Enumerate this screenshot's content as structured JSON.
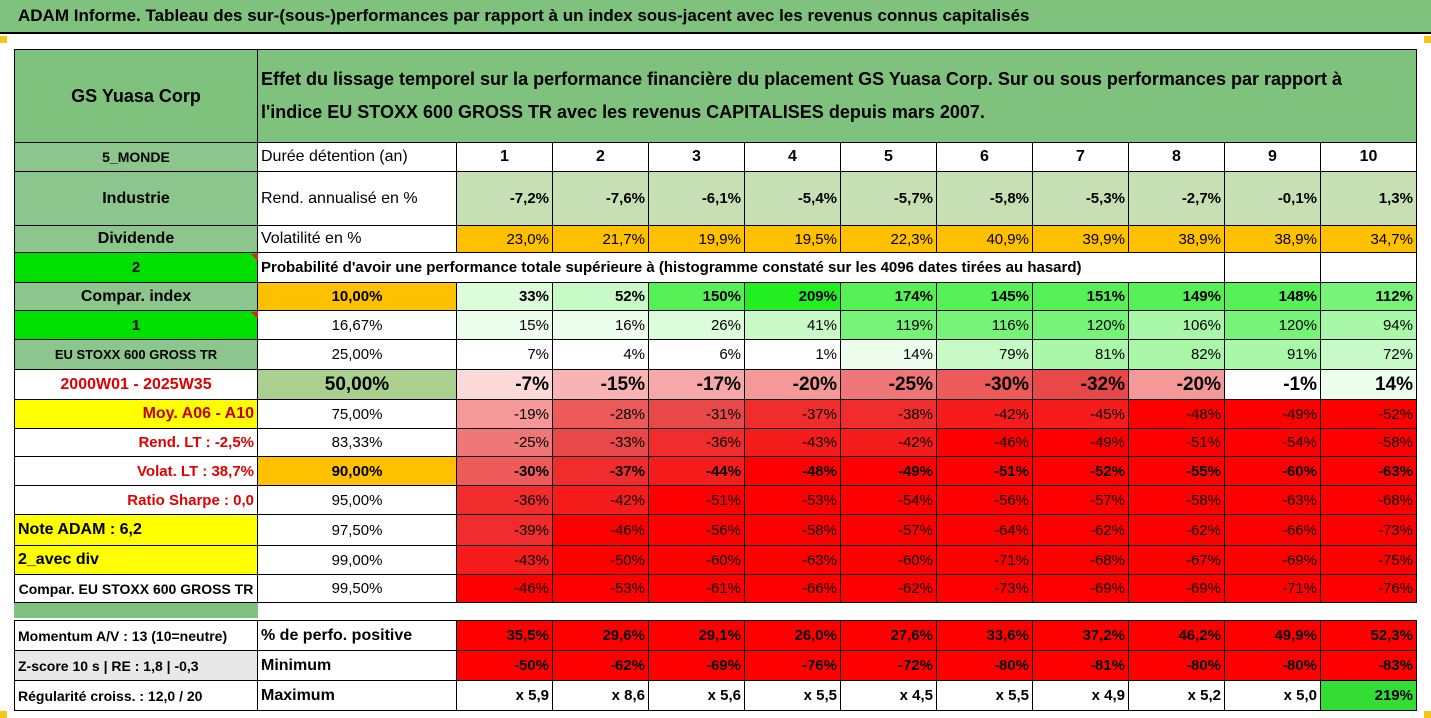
{
  "title": "ADAM Informe. Tableau des sur-(sous-)performances par rapport à un index sous-jacent avec les revenus connus capitalisés",
  "header": {
    "company": "GS Yuasa Corp",
    "description_line1": "Effet du lissage temporel sur la performance financière du placement GS Yuasa Corp. Sur ou sous performances par rapport à",
    "description_line2": "l'indice EU STOXX 600 GROSS TR avec les revenus CAPITALISES depuis mars 2007."
  },
  "left_labels": {
    "region": "5_MONDE",
    "sector": "Industrie",
    "dividend": "Dividende",
    "value2": "2",
    "compar_index": "Compar. index",
    "value1": "1",
    "index_name": "EU STOXX 600 GROSS TR",
    "period": "2000W01 - 2025W35",
    "moy": "Moy. A06 - A10",
    "rend_lt": "Rend. LT :   -2,5%",
    "volat_lt": "Volat. LT :   38,7%",
    "sharpe": "Ratio Sharpe :   0,0",
    "note": "Note ADAM : 6,2",
    "avec_div": "2_avec div",
    "compar_full": "Compar. EU STOXX 600 GROSS TR"
  },
  "row_labels": {
    "duree": "Durée détention (an)",
    "rend": "Rend. annualisé en %",
    "vol": "Volatilité en %",
    "prob": "Probabilité d'avoir une performance totale supérieure à (histogramme constaté sur les 4096 dates tirées au hasard)"
  },
  "years": [
    "1",
    "2",
    "3",
    "4",
    "5",
    "6",
    "7",
    "8",
    "9",
    "10"
  ],
  "rend": [
    "-7,2%",
    "-7,6%",
    "-6,1%",
    "-5,4%",
    "-5,7%",
    "-5,8%",
    "-5,3%",
    "-2,7%",
    "-0,1%",
    "1,3%"
  ],
  "vol": [
    "23,0%",
    "21,7%",
    "19,9%",
    "19,5%",
    "22,3%",
    "40,9%",
    "39,9%",
    "38,9%",
    "38,9%",
    "34,7%"
  ],
  "percentile_rows": [
    {
      "pct": "10,00%",
      "values": [
        "33%",
        "52%",
        "150%",
        "209%",
        "174%",
        "145%",
        "151%",
        "149%",
        "148%",
        "112%"
      ]
    },
    {
      "pct": "16,67%",
      "values": [
        "15%",
        "16%",
        "26%",
        "41%",
        "119%",
        "116%",
        "120%",
        "106%",
        "120%",
        "94%"
      ]
    },
    {
      "pct": "25,00%",
      "values": [
        "7%",
        "4%",
        "6%",
        "1%",
        "14%",
        "79%",
        "81%",
        "82%",
        "91%",
        "72%"
      ]
    },
    {
      "pct": "50,00%",
      "values": [
        "-7%",
        "-15%",
        "-17%",
        "-20%",
        "-25%",
        "-30%",
        "-32%",
        "-20%",
        "-1%",
        "14%"
      ]
    },
    {
      "pct": "75,00%",
      "values": [
        "-19%",
        "-28%",
        "-31%",
        "-37%",
        "-38%",
        "-42%",
        "-45%",
        "-48%",
        "-49%",
        "-52%"
      ]
    },
    {
      "pct": "83,33%",
      "values": [
        "-25%",
        "-33%",
        "-36%",
        "-43%",
        "-42%",
        "-46%",
        "-49%",
        "-51%",
        "-54%",
        "-58%"
      ]
    },
    {
      "pct": "90,00%",
      "values": [
        "-30%",
        "-37%",
        "-44%",
        "-48%",
        "-49%",
        "-51%",
        "-52%",
        "-55%",
        "-60%",
        "-63%"
      ]
    },
    {
      "pct": "95,00%",
      "values": [
        "-36%",
        "-42%",
        "-51%",
        "-53%",
        "-54%",
        "-56%",
        "-57%",
        "-58%",
        "-63%",
        "-68%"
      ]
    },
    {
      "pct": "97,50%",
      "values": [
        "-39%",
        "-46%",
        "-56%",
        "-58%",
        "-57%",
        "-64%",
        "-62%",
        "-62%",
        "-66%",
        "-73%"
      ]
    },
    {
      "pct": "99,00%",
      "values": [
        "-43%",
        "-50%",
        "-60%",
        "-63%",
        "-60%",
        "-71%",
        "-68%",
        "-67%",
        "-69%",
        "-75%"
      ]
    },
    {
      "pct": "99,50%",
      "values": [
        "-46%",
        "-53%",
        "-61%",
        "-66%",
        "-62%",
        "-73%",
        "-69%",
        "-69%",
        "-71%",
        "-76%"
      ]
    }
  ],
  "bottom": {
    "rows": [
      {
        "left": "Momentum A/V : 13 (10=neutre)",
        "label": "% de perfo. positive",
        "values": [
          "35,5%",
          "29,6%",
          "29,1%",
          "26,0%",
          "27,6%",
          "33,6%",
          "37,2%",
          "46,2%",
          "49,9%",
          "52,3%"
        ]
      },
      {
        "left": "Z-score 10 s  |  RE : 1,8  |  -0,3",
        "label": "Minimum",
        "values": [
          "-50%",
          "-62%",
          "-69%",
          "-76%",
          "-72%",
          "-80%",
          "-81%",
          "-80%",
          "-80%",
          "-83%"
        ]
      },
      {
        "left": "Régularité croiss. : 12,0 / 20",
        "label": "Maximum",
        "values": [
          "x 5,9",
          "x 8,6",
          "x 5,6",
          "x 5,5",
          "x 4,5",
          "x 5,5",
          "x 4,9",
          "x 5,2",
          "x 5,0",
          "219%"
        ]
      }
    ]
  },
  "colors": {
    "header_green": "#7ec27e",
    "label_green": "#8cc68c",
    "bright_green": "#00e000",
    "yellow": "#ffff00",
    "orange": "#ffc000",
    "light_green_rend": "#c6e0b4",
    "red": "#ff0000"
  }
}
